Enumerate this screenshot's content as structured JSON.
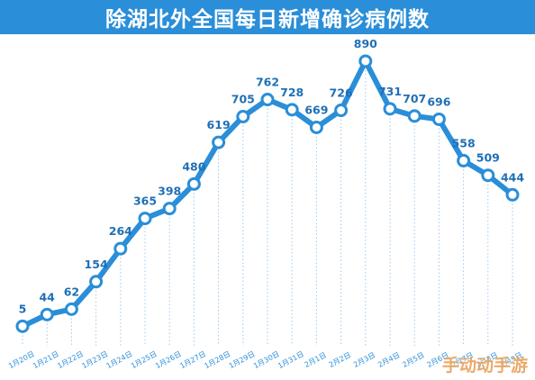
{
  "title": "除湖北外全国每日新增确诊病例数",
  "watermark": "手动动手游",
  "colors": {
    "title_bg": "#2a8ed8",
    "line": "#2a8ed8",
    "marker_fill": "#ffffff",
    "value_text": "#1f6fb5",
    "grid": "#9cc8ec",
    "tick_text": "#2a8ed8"
  },
  "chart_data": {
    "type": "line",
    "title": "除湖北外全国每日新增确诊病例数",
    "xlabel": "",
    "ylabel": "",
    "categories": [
      "1月20日",
      "1月21日",
      "1月22日",
      "1月23日",
      "1月24日",
      "1月25日",
      "1月26日",
      "1月27日",
      "1月28日",
      "1月29日",
      "1月30日",
      "1月31日",
      "2月1日",
      "2月2日",
      "2月3日",
      "2月4日",
      "2月5日",
      "2月6日",
      "2月7日",
      "2月8日",
      "2月9日"
    ],
    "values": [
      5,
      44,
      62,
      154,
      264,
      365,
      398,
      480,
      619,
      705,
      762,
      728,
      669,
      726,
      890,
      731,
      707,
      696,
      558,
      509,
      444
    ],
    "ylim": [
      0,
      950
    ],
    "grid": "vertical dotted per category",
    "legend": "none"
  }
}
